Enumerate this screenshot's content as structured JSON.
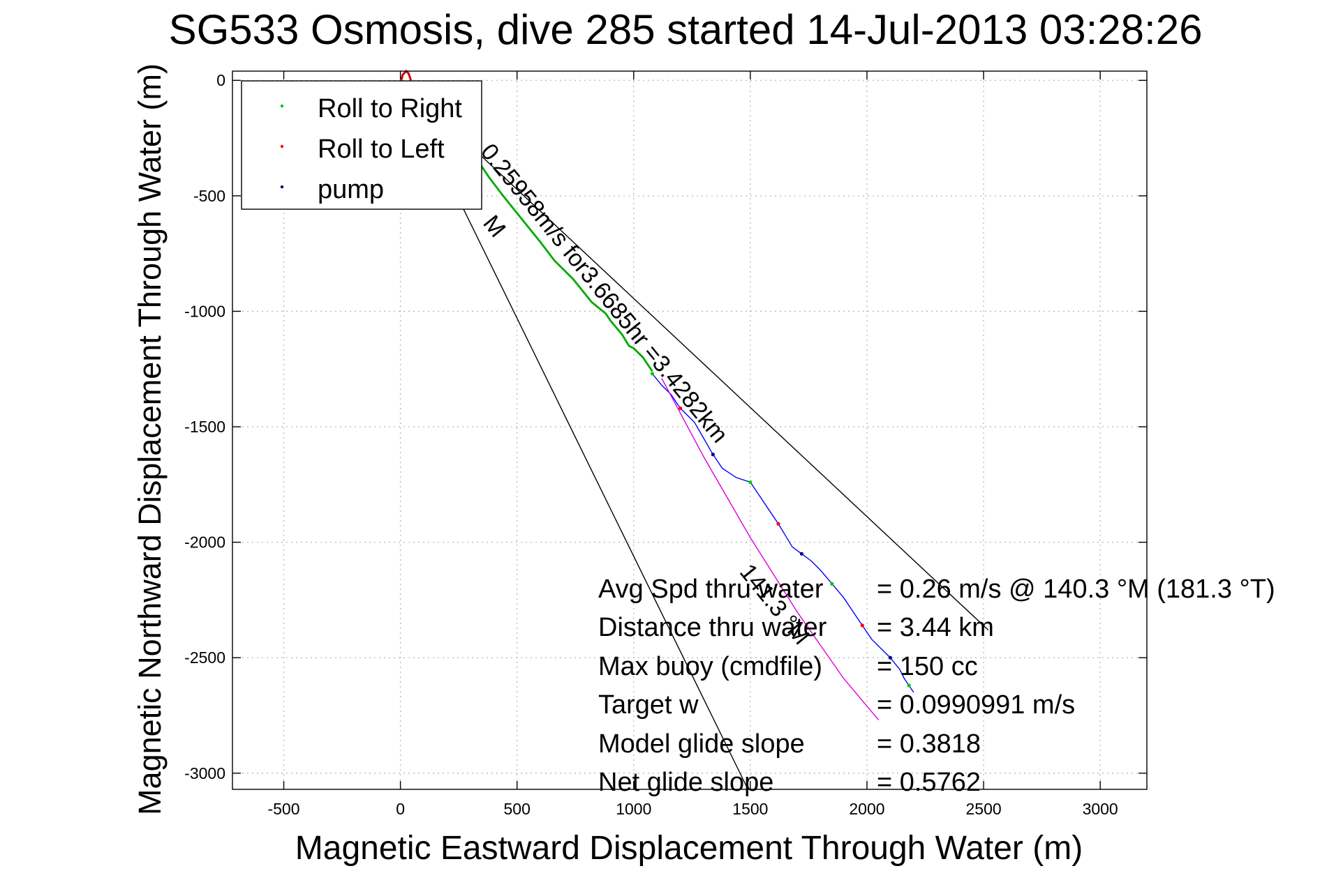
{
  "chart_data": {
    "type": "line",
    "title": "SG533 Osmosis, dive 285 started 14-Jul-2013 03:28:26",
    "xlabel": "Magnetic Eastward Displacement Through Water (m)",
    "ylabel": "Magnetic Northward Displacement Through Water (m)",
    "xlim": [
      -720,
      3200
    ],
    "ylim": [
      -3070,
      40
    ],
    "xticks": [
      -500,
      0,
      500,
      1000,
      1500,
      2000,
      2500,
      3000
    ],
    "yticks": [
      0,
      -500,
      -1000,
      -1500,
      -2000,
      -2500,
      -3000
    ],
    "grid": true,
    "legend_position": "top-left",
    "legend": [
      {
        "label": "Roll to Right",
        "color": "#00cc00"
      },
      {
        "label": "Roll to Left",
        "color": "#ff0000"
      },
      {
        "label": "pump",
        "color": "#000080"
      }
    ],
    "series": [
      {
        "color": "#00aa00",
        "x": [
          40,
          120,
          200,
          300,
          380,
          440,
          520,
          600,
          660,
          740,
          820,
          880,
          900,
          950,
          980,
          1000,
          1040,
          1080
        ],
        "y": [
          -10,
          -80,
          -180,
          -300,
          -420,
          -500,
          -600,
          -700,
          -780,
          -860,
          -960,
          -1010,
          -1040,
          -1100,
          -1150,
          -1160,
          -1200,
          -1260
        ]
      },
      {
        "color": "#0000ff",
        "x": [
          1080,
          1120,
          1160,
          1200,
          1260,
          1300,
          1340,
          1380,
          1440,
          1500,
          1540,
          1580,
          1620,
          1650,
          1680,
          1720,
          1760,
          1800,
          1850,
          1900,
          1940,
          1980,
          2020,
          2060,
          2100,
          2140,
          2160,
          2180,
          2200
        ],
        "y": [
          -1270,
          -1320,
          -1360,
          -1420,
          -1480,
          -1550,
          -1620,
          -1680,
          -1720,
          -1740,
          -1800,
          -1860,
          -1920,
          -1970,
          -2020,
          -2050,
          -2080,
          -2120,
          -2180,
          -2240,
          -2300,
          -2360,
          -2420,
          -2460,
          -2500,
          -2550,
          -2590,
          -2620,
          -2650
        ]
      },
      {
        "color": "#dd00dd",
        "x": [
          1120,
          1300,
          1500,
          1700,
          1900,
          2050
        ],
        "y": [
          -1290,
          -1630,
          -1980,
          -2300,
          -2590,
          -2770
        ]
      }
    ],
    "envelope_lines": [
      {
        "x": [
          0,
          1490
        ],
        "y": [
          0,
          -3070
        ]
      },
      {
        "x": [
          0,
          2520
        ],
        "y": [
          0,
          -2380
        ]
      }
    ],
    "start_marker": {
      "x": [
        0,
        10,
        25,
        35,
        45
      ],
      "y": [
        -15,
        25,
        40,
        30,
        0
      ],
      "color": "#cc0000"
    },
    "slanted_labels": [
      {
        "text": "0.25958m/s for3.6685hr =3.4282km",
        "x": 340,
        "y": -310,
        "angle": 51
      },
      {
        "text": "M",
        "x": 350,
        "y": -620,
        "angle": 51
      },
      {
        "text": "141.3 °M",
        "x": 1450,
        "y": -2130,
        "angle": 51
      }
    ],
    "annotations": [
      {
        "label": "Avg Spd thru water",
        "value": "=  0.26 m/s @ 140.3 °M (181.3 °T)"
      },
      {
        "label": "Distance thru water",
        "value": "=  3.44 km"
      },
      {
        "label": "Max buoy (cmdfile)",
        "value": "= 150 cc"
      },
      {
        "label": "Target w",
        "value": "= 0.0990991 m/s"
      },
      {
        "label": "Model glide slope",
        "value": "= 0.3818"
      },
      {
        "label": "Net glide slope",
        "value": "= 0.5762"
      }
    ]
  }
}
